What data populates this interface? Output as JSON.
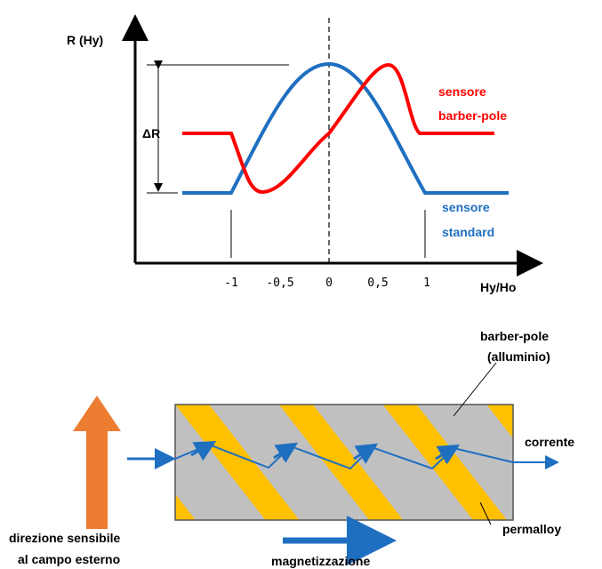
{
  "graph": {
    "y_axis_label": "R (Hy)",
    "x_axis_label": "Hy/Ho",
    "delta_label": "ΔR",
    "x_ticks": [
      {
        "value": -1,
        "label": "-1"
      },
      {
        "value": -0.5,
        "label": "-0,5"
      },
      {
        "value": 0,
        "label": "0"
      },
      {
        "value": 0.5,
        "label": "0,5"
      },
      {
        "value": 1,
        "label": "1"
      }
    ],
    "curves": [
      {
        "label": [
          "sensore",
          "barber-pole"
        ],
        "color": "#ff0000"
      },
      {
        "label": [
          "sensore",
          "standard"
        ],
        "color": "#1f6fc1"
      }
    ]
  },
  "schematic": {
    "barber_pole_label": [
      "barber-pole",
      "(alluminio)"
    ],
    "current_label": "corrente",
    "permalloy_label": "permalloy",
    "sensitive_direction_label": [
      "direzione sensibile",
      "al campo esterno"
    ],
    "magnetization_label": "magnetizzazione"
  }
}
